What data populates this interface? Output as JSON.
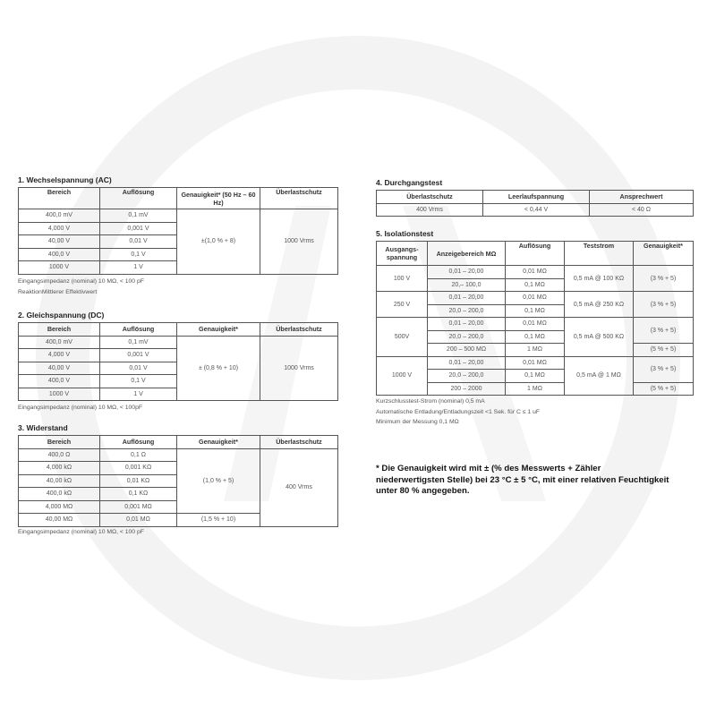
{
  "colors": {
    "text": "#444444",
    "border": "#555555",
    "watermark": "#f2f2f2"
  },
  "s1": {
    "title": "1. Wechselspannung (AC)",
    "headers": [
      "Bereich",
      "Auflösung",
      "Genauigkeit* (50 Hz – 60 Hz)",
      "Überlastschutz"
    ],
    "rows": [
      [
        "400,0 mV",
        "0,1 mV"
      ],
      [
        "4,000 V",
        "0,001 V"
      ],
      [
        "40,00 V",
        "0,01 V"
      ],
      [
        "400,0 V",
        "0,1 V"
      ],
      [
        "1000 V",
        "1 V"
      ]
    ],
    "accuracy": "±(1,0 % + 8)",
    "protection": "1000 Vrms",
    "notes": [
      "Eingangsimpedanz (nominal) 10 MΩ, < 100 pF",
      "ReaktionMittlerer Effektivwert"
    ]
  },
  "s2": {
    "title": "2. Gleichspannung (DC)",
    "headers": [
      "Bereich",
      "Auflösung",
      "Genauigkeit*",
      "Überlastschutz"
    ],
    "rows": [
      [
        "400,0 mV",
        "0,1 mV"
      ],
      [
        "4,000 V",
        "0,001 V"
      ],
      [
        "40,00 V",
        "0,01 V"
      ],
      [
        "400,0 V",
        "0,1 V"
      ],
      [
        "1000 V",
        "1 V"
      ]
    ],
    "accuracy": "± (0,8 % + 10)",
    "protection": "1000 Vrms",
    "notes": [
      "Eingangsimpedanz (nominal) 10 MΩ, < 100pF"
    ]
  },
  "s3": {
    "title": "3. Widerstand",
    "headers": [
      "Bereich",
      "Auflösung",
      "Genauigkeit*",
      "Überlastschutz"
    ],
    "rows": [
      [
        "400,0 Ω",
        "0,1 Ω"
      ],
      [
        "4,000 kΩ",
        "0,001 KΩ"
      ],
      [
        "40,00 kΩ",
        "0,01 KΩ"
      ],
      [
        "400,0 kΩ",
        "0,1 KΩ"
      ],
      [
        "4,000 MΩ",
        "0,001 MΩ"
      ],
      [
        "40,00 MΩ",
        "0,01 MΩ"
      ]
    ],
    "accuracy1": "(1,0 % + 5)",
    "accuracy2": "(1,5 % + 10)",
    "protection": "400 Vrms",
    "notes": [
      "Eingangsimpedanz (nominal) 10 MΩ, < 100 pF"
    ]
  },
  "s4": {
    "title": "4. Durchgangstest",
    "headers": [
      "Überlastschutz",
      "Leerlaufspannung",
      "Ansprechwert"
    ],
    "row": [
      "400 Vrms",
      "< 0,44 V",
      "< 40 Ω"
    ]
  },
  "s5": {
    "title": "5. Isolationstest",
    "headers": [
      "Ausgangs-spannung",
      "Anzeigebereich MΩ",
      "Auflösung",
      "Teststrom",
      "Genauigkeit*"
    ],
    "groups": [
      {
        "voltage": "100 V",
        "current": "0,5 mA @ 100 KΩ",
        "ranges": [
          [
            "0,01 – 20,00",
            "0,01 MΩ"
          ],
          [
            "20,– 100,0",
            "0,1 MΩ"
          ]
        ],
        "acc": [
          "(3 % + 5)"
        ]
      },
      {
        "voltage": "250 V",
        "current": "0,5 mA @ 250 KΩ",
        "ranges": [
          [
            "0,01 – 20,00",
            "0,01 MΩ"
          ],
          [
            "20,0 – 200,0",
            "0,1 MΩ"
          ]
        ],
        "acc": [
          "(3 % + 5)"
        ]
      },
      {
        "voltage": "500V",
        "current": "0,5 mA @ 500 KΩ",
        "ranges": [
          [
            "0,01 – 20,00",
            "0,01 MΩ"
          ],
          [
            "20,0 – 200,0",
            "0,1 MΩ"
          ],
          [
            "200 – 500 MΩ",
            "1 MΩ"
          ]
        ],
        "acc": [
          "(3 % + 5)",
          "(5 % + 5)"
        ]
      },
      {
        "voltage": "1000 V",
        "current": "0,5 mA @ 1 MΩ",
        "ranges": [
          [
            "0,01 – 20,00",
            "0,01 MΩ"
          ],
          [
            "20,0 – 200,0",
            "0,1 MΩ"
          ],
          [
            "200 – 2000",
            "1 MΩ"
          ]
        ],
        "acc": [
          "(3 % + 5)",
          "(5 % + 5)"
        ]
      }
    ],
    "notes": [
      "Kurzschlusstest-Strom (nominal) 0,5 mA",
      "Automatische Entladung/Entladungszeit <1 Sek. für C ≤ 1 uF",
      "Minimum der Messung 0,1 MΩ"
    ]
  },
  "footnote": "* Die Genauigkeit wird mit ± (% des Messwerts + Zähler niederwertigsten Stelle) bei 23 °C ± 5 °C, mit einer relativen Feuchtigkeit unter 80 % angegeben."
}
